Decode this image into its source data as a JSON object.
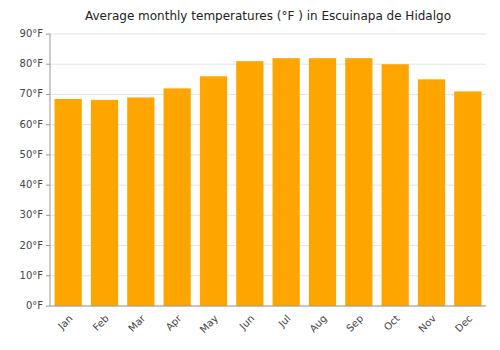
{
  "chart_data": {
    "type": "bar",
    "title": "Average monthly temperatures (°F ) in Escuinapa de Hidalgo",
    "categories": [
      "Jan",
      "Feb",
      "Mar",
      "Apr",
      "May",
      "Jun",
      "Jul",
      "Aug",
      "Sep",
      "Oct",
      "Nov",
      "Dec"
    ],
    "values": [
      68.5,
      68.2,
      69.0,
      72.0,
      76.0,
      81.0,
      82.0,
      82.0,
      82.0,
      80.0,
      75.0,
      71.0
    ],
    "color": "#FFA500",
    "ylim": [
      0,
      90
    ],
    "yticks": [
      {
        "value": 0,
        "label": "0°F"
      },
      {
        "value": 10,
        "label": "10°F"
      },
      {
        "value": 20,
        "label": "20°F"
      },
      {
        "value": 30,
        "label": "30°F"
      },
      {
        "value": 40,
        "label": "40°F"
      },
      {
        "value": 50,
        "label": "50°F"
      },
      {
        "value": 60,
        "label": "60°F"
      },
      {
        "value": 70,
        "label": "70°F"
      },
      {
        "value": 80,
        "label": "80°F"
      },
      {
        "value": 90,
        "label": "90°F"
      }
    ],
    "grid": true
  }
}
